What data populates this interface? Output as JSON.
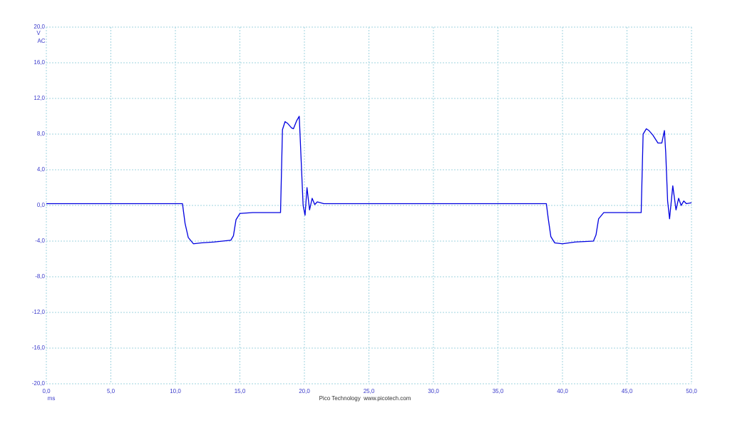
{
  "chart_data": {
    "type": "line",
    "y_axis_label": "V",
    "coupling": "AC",
    "x_axis_label": "ms",
    "footer": "Pico Technology  www.picotech.com",
    "xlim": [
      0,
      50
    ],
    "ylim": [
      -20,
      20
    ],
    "grid": true,
    "xticks": [
      {
        "value": 0,
        "label": "0,0"
      },
      {
        "value": 5,
        "label": "5,0"
      },
      {
        "value": 10,
        "label": "10,0"
      },
      {
        "value": 15,
        "label": "15,0"
      },
      {
        "value": 20,
        "label": "20,0"
      },
      {
        "value": 25,
        "label": "25,0"
      },
      {
        "value": 30,
        "label": "30,0"
      },
      {
        "value": 35,
        "label": "35,0"
      },
      {
        "value": 40,
        "label": "40,0"
      },
      {
        "value": 45,
        "label": "45,0"
      },
      {
        "value": 50,
        "label": "50,0"
      }
    ],
    "yticks": [
      {
        "value": -20,
        "label": "-20,0"
      },
      {
        "value": -16,
        "label": "-16,0"
      },
      {
        "value": -12,
        "label": "-12,0"
      },
      {
        "value": -8,
        "label": "-8,0"
      },
      {
        "value": -4,
        "label": "-4,0"
      },
      {
        "value": 0,
        "label": "0,0"
      },
      {
        "value": 4,
        "label": "4,0"
      },
      {
        "value": 8,
        "label": "8,0"
      },
      {
        "value": 12,
        "label": "12,0"
      },
      {
        "value": 16,
        "label": "16,0"
      },
      {
        "value": 20,
        "label": "20,0"
      }
    ],
    "x": [
      0,
      2,
      4,
      6,
      8,
      10,
      10.55,
      10.75,
      11.0,
      11.4,
      12,
      13,
      14.3,
      14.5,
      14.7,
      15.0,
      16,
      17,
      18.15,
      18.3,
      18.5,
      18.7,
      19.0,
      19.15,
      19.4,
      19.6,
      19.75,
      19.9,
      20.05,
      20.2,
      20.4,
      20.6,
      20.8,
      21.0,
      21.5,
      25,
      30,
      35,
      38.75,
      38.9,
      39.1,
      39.4,
      40,
      41,
      42.4,
      42.6,
      42.8,
      43.2,
      44,
      45,
      46.1,
      46.25,
      46.5,
      46.7,
      47.0,
      47.4,
      47.7,
      47.9,
      48.0,
      48.15,
      48.3,
      48.55,
      48.8,
      49.0,
      49.2,
      49.4,
      49.6,
      50
    ],
    "series": [
      {
        "color": "#0000e0",
        "values": [
          0.2,
          0.2,
          0.2,
          0.2,
          0.2,
          0.2,
          0.2,
          -2.0,
          -3.6,
          -4.3,
          -4.2,
          -4.1,
          -3.9,
          -3.4,
          -1.6,
          -0.9,
          -0.8,
          -0.8,
          -0.8,
          8.5,
          9.4,
          9.2,
          8.7,
          8.6,
          9.5,
          10.0,
          5.0,
          0.0,
          -1.1,
          2.0,
          -0.5,
          0.8,
          0.1,
          0.4,
          0.2,
          0.2,
          0.2,
          0.2,
          0.2,
          -1.5,
          -3.5,
          -4.2,
          -4.3,
          -4.1,
          -4.0,
          -3.3,
          -1.5,
          -0.8,
          -0.8,
          -0.8,
          -0.8,
          8.0,
          8.6,
          8.4,
          7.9,
          7.0,
          7.0,
          8.4,
          6.0,
          0.5,
          -1.5,
          2.2,
          -0.5,
          0.8,
          0.0,
          0.5,
          0.2,
          0.3
        ]
      }
    ]
  }
}
